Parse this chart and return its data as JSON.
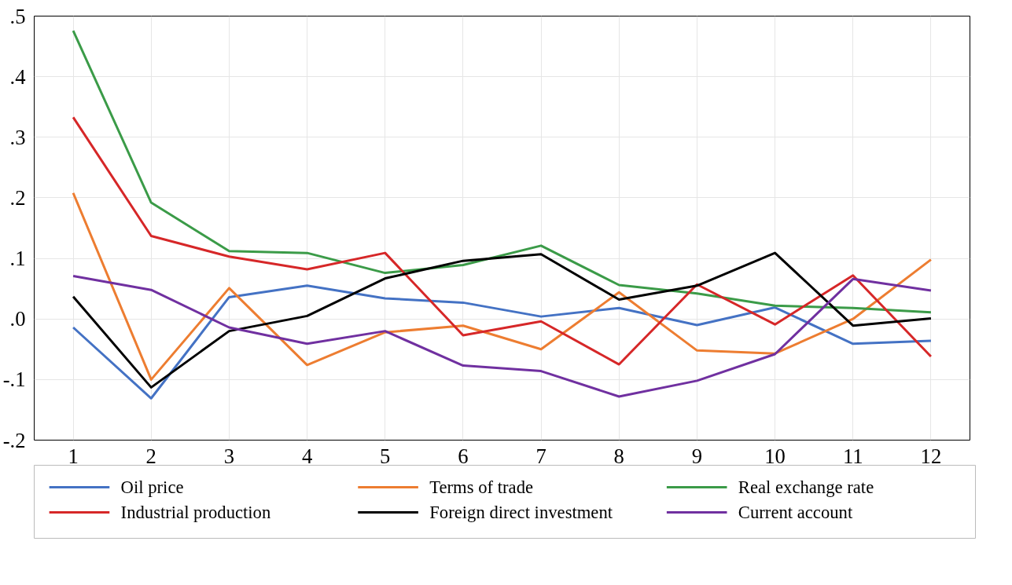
{
  "chart_data": {
    "type": "line",
    "x": [
      1,
      2,
      3,
      4,
      5,
      6,
      7,
      8,
      9,
      10,
      11,
      12
    ],
    "xlim": [
      0.5,
      12.5
    ],
    "xticks": [
      1,
      2,
      3,
      4,
      5,
      6,
      7,
      8,
      9,
      10,
      11,
      12
    ],
    "ylim": [
      -0.2,
      0.5
    ],
    "yticks": [
      {
        "value": -0.2,
        "label": "-.2"
      },
      {
        "value": -0.1,
        "label": "-.1"
      },
      {
        "value": 0,
        "label": ".0"
      },
      {
        "value": 0.1,
        "label": ".1"
      },
      {
        "value": 0.2,
        "label": ".2"
      },
      {
        "value": 0.3,
        "label": ".3"
      },
      {
        "value": 0.4,
        "label": ".4"
      },
      {
        "value": 0.5,
        "label": ".5"
      }
    ],
    "grid": true,
    "legend": "bottom",
    "marker": "none",
    "line_style": "solid",
    "series": [
      {
        "name": "Oil price",
        "color": "#4472c4",
        "values": [
          -0.014,
          -0.131,
          0.036,
          0.055,
          0.034,
          0.027,
          0.004,
          0.018,
          -0.01,
          0.019,
          -0.041,
          -0.036
        ]
      },
      {
        "name": "Terms of trade",
        "color": "#ed7d31",
        "values": [
          0.208,
          -0.1,
          0.051,
          -0.076,
          -0.022,
          -0.011,
          -0.05,
          0.044,
          -0.052,
          -0.057,
          0.0,
          0.098
        ]
      },
      {
        "name": "Real exchange rate",
        "color": "#3b9b48",
        "values": [
          0.476,
          0.192,
          0.112,
          0.109,
          0.076,
          0.089,
          0.121,
          0.056,
          0.042,
          0.022,
          0.018,
          0.011
        ]
      },
      {
        "name": "Industrial production",
        "color": "#d62728",
        "values": [
          0.333,
          0.137,
          0.103,
          0.082,
          0.109,
          -0.027,
          -0.004,
          -0.075,
          0.057,
          -0.009,
          0.072,
          -0.062
        ]
      },
      {
        "name": "Foreign direct investment",
        "color": "#000000",
        "values": [
          0.037,
          -0.113,
          -0.02,
          0.005,
          0.067,
          0.096,
          0.107,
          0.032,
          0.055,
          0.109,
          -0.011,
          0.001
        ]
      },
      {
        "name": "Current account",
        "color": "#7030a0",
        "values": [
          0.071,
          0.048,
          -0.014,
          -0.041,
          -0.02,
          -0.077,
          -0.086,
          -0.128,
          -0.102,
          -0.058,
          0.066,
          0.047
        ]
      }
    ]
  }
}
